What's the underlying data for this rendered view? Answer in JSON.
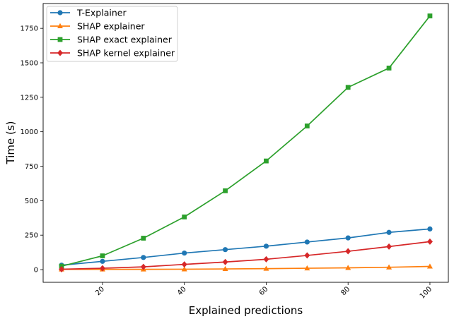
{
  "chart_data": {
    "type": "line",
    "title": "",
    "xlabel": "Explained predictions",
    "ylabel": "Time (s)",
    "x": [
      10,
      20,
      30,
      40,
      50,
      60,
      70,
      80,
      90,
      100
    ],
    "xlim": [
      5.5,
      104.5
    ],
    "ylim": [
      -92,
      1930
    ],
    "xticks": [
      20,
      40,
      60,
      80,
      100
    ],
    "yticks": [
      0,
      250,
      500,
      750,
      1000,
      1250,
      1500,
      1750
    ],
    "xtick_labels": [
      "20",
      "40",
      "60",
      "80",
      "100"
    ],
    "ytick_labels": [
      "0",
      "250",
      "500",
      "750",
      "1000",
      "1250",
      "1500",
      "1750"
    ],
    "xtick_rotation": 45,
    "grid": false,
    "legend_position": "top-left",
    "series": [
      {
        "name": "T-Explainer",
        "color": "#1f77b4",
        "marker": "circle",
        "values": [
          32,
          60,
          88,
          120,
          145,
          170,
          200,
          230,
          270,
          295
        ]
      },
      {
        "name": "SHAP explainer",
        "color": "#ff7f0e",
        "marker": "triangle",
        "values": [
          2,
          2,
          2,
          3,
          5,
          7,
          10,
          13,
          17,
          23
        ]
      },
      {
        "name": "SHAP exact explainer",
        "color": "#2ca02c",
        "marker": "square",
        "values": [
          25,
          100,
          228,
          382,
          572,
          788,
          1042,
          1322,
          1462,
          1840
        ]
      },
      {
        "name": "SHAP kernel explainer",
        "color": "#d62728",
        "marker": "diamond",
        "values": [
          3,
          10,
          20,
          38,
          55,
          75,
          103,
          133,
          167,
          203
        ]
      }
    ]
  }
}
